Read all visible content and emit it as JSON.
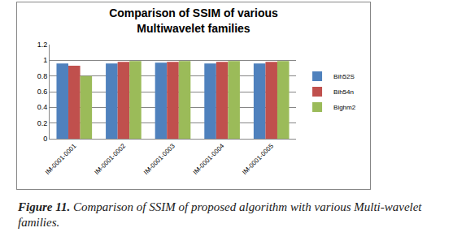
{
  "chart_data": {
    "type": "bar",
    "title": "Comparison of SSIM of various Multiwavelet families",
    "categories": [
      "IM-0001-0001",
      "IM-0001-0002",
      "IM-0001-0003",
      "IM-0001-0004",
      "IM-0001-0005"
    ],
    "series": [
      {
        "name": "Bih52S",
        "color": "#4f81bd",
        "values": [
          0.96,
          0.96,
          0.97,
          0.96,
          0.96
        ]
      },
      {
        "name": "Bih54n",
        "color": "#c0504d",
        "values": [
          0.93,
          0.98,
          0.98,
          0.98,
          0.98
        ]
      },
      {
        "name": "Bighm2",
        "color": "#9bbb59",
        "values": [
          0.8,
          0.99,
          0.99,
          0.99,
          0.99
        ]
      }
    ],
    "ylim": [
      0,
      1.2
    ],
    "yticks": [
      0,
      0.2,
      0.4,
      0.6,
      0.8,
      1,
      1.2
    ],
    "grid": true,
    "legend": "right"
  },
  "caption": {
    "label": "Figure 11.",
    "text": "Comparison of SSIM of proposed algorithm with various Multi-wavelet families."
  }
}
